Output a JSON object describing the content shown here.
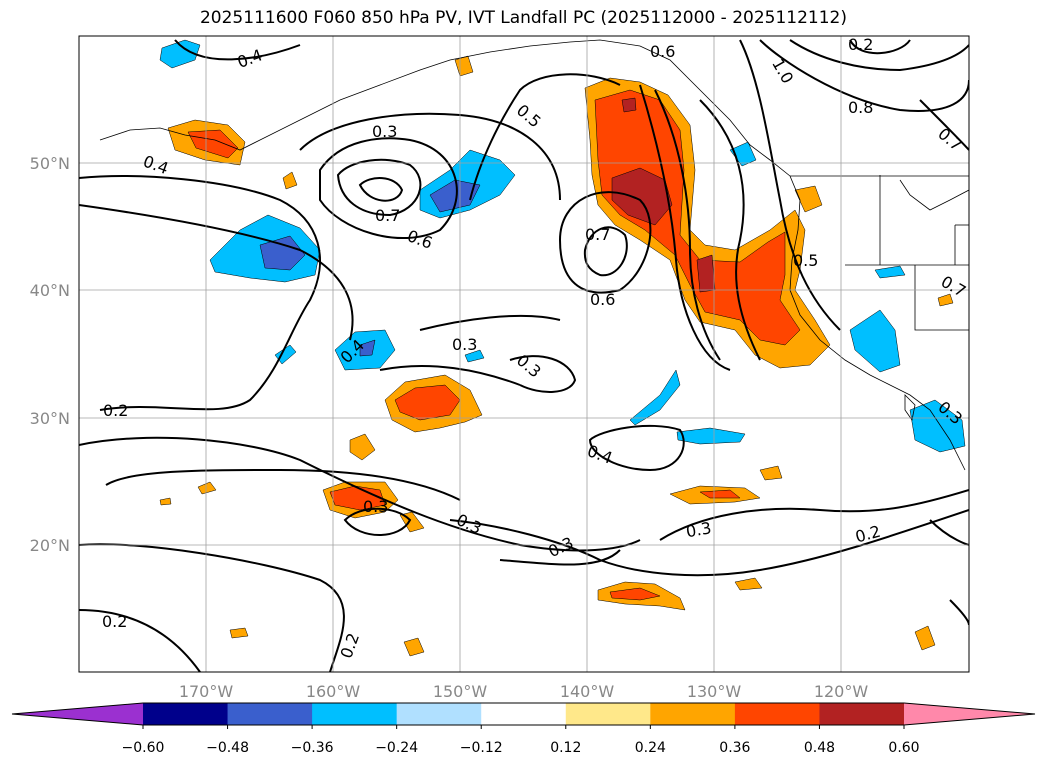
{
  "map": {
    "title": "2025111600 F060 850 hPa PV, IVT Landfall PC (2025112000 - 2025112112)",
    "lat_ticks": [
      "50°N",
      "40°N",
      "30°N",
      "20°N"
    ],
    "lon_ticks": [
      "170°W",
      "160°W",
      "150°W",
      "140°W",
      "130°W",
      "120°W"
    ],
    "contour_labels": [
      "0.4",
      "0.3",
      "0.5",
      "0.6",
      "1.0",
      "0.8",
      "0.2",
      "0.7",
      "0.4",
      "0.7",
      "0.6",
      "0.7",
      "0.6",
      "0.5",
      "0.3",
      "0.4",
      "0.3",
      "0.3",
      "0.7",
      "0.2",
      "0.4",
      "0.3",
      "0.3",
      "0.3",
      "0.3",
      "0.2",
      "0.2",
      "0.2"
    ],
    "colorbar": {
      "ticks": [
        "−0.60",
        "−0.48",
        "−0.36",
        "−0.24",
        "−0.12",
        "0.12",
        "0.24",
        "0.36",
        "0.48",
        "0.60"
      ],
      "colors": [
        "#9b30d0",
        "#00008b",
        "#3a5fcd",
        "#00bfff",
        "#b0e0ff",
        "#ffffff",
        "#ffe88a",
        "#ffa500",
        "#ff4500",
        "#b22222",
        "#ff88aa"
      ]
    }
  }
}
